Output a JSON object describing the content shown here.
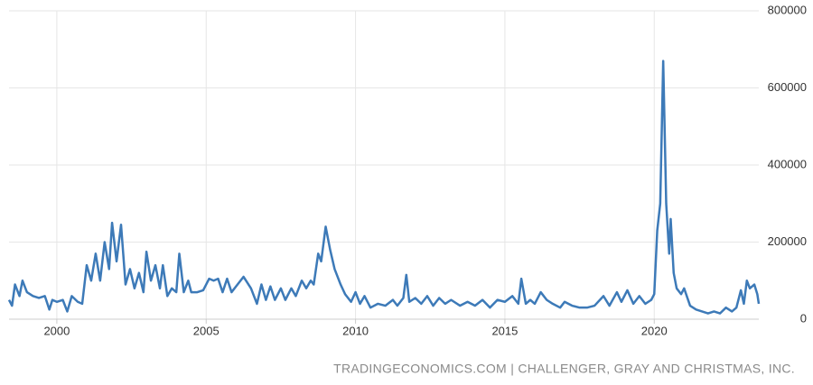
{
  "chart_data": {
    "type": "line",
    "source": "TRADINGECONOMICS.COM | CHALLENGER, GRAY AND CHRISTMAS, INC.",
    "x": [
      1998.4,
      1998.5,
      1998.6,
      1998.75,
      1998.85,
      1999.0,
      1999.2,
      1999.4,
      1999.6,
      1999.75,
      1999.85,
      2000.0,
      2000.2,
      2000.35,
      2000.5,
      2000.7,
      2000.85,
      2001.0,
      2001.15,
      2001.3,
      2001.45,
      2001.6,
      2001.75,
      2001.85,
      2002.0,
      2002.15,
      2002.3,
      2002.45,
      2002.6,
      2002.75,
      2002.9,
      2003.0,
      2003.15,
      2003.3,
      2003.45,
      2003.55,
      2003.7,
      2003.85,
      2004.0,
      2004.1,
      2004.25,
      2004.4,
      2004.5,
      2004.7,
      2004.9,
      2005.1,
      2005.25,
      2005.4,
      2005.55,
      2005.7,
      2005.85,
      2006.0,
      2006.25,
      2006.5,
      2006.7,
      2006.85,
      2007.0,
      2007.15,
      2007.3,
      2007.5,
      2007.65,
      2007.85,
      2008.0,
      2008.2,
      2008.35,
      2008.5,
      2008.6,
      2008.75,
      2008.85,
      2009.0,
      2009.15,
      2009.3,
      2009.5,
      2009.65,
      2009.85,
      2010.0,
      2010.15,
      2010.3,
      2010.5,
      2010.75,
      2011.0,
      2011.25,
      2011.4,
      2011.6,
      2011.7,
      2011.8,
      2012.0,
      2012.2,
      2012.4,
      2012.6,
      2012.8,
      2013.0,
      2013.2,
      2013.5,
      2013.75,
      2014.0,
      2014.25,
      2014.5,
      2014.75,
      2015.0,
      2015.25,
      2015.45,
      2015.55,
      2015.7,
      2015.85,
      2016.0,
      2016.2,
      2016.4,
      2016.6,
      2016.85,
      2017.0,
      2017.25,
      2017.5,
      2017.75,
      2018.0,
      2018.3,
      2018.5,
      2018.75,
      2018.9,
      2019.1,
      2019.3,
      2019.5,
      2019.7,
      2019.9,
      2020.0,
      2020.1,
      2020.2,
      2020.3,
      2020.4,
      2020.5,
      2020.55,
      2020.65,
      2020.75,
      2020.9,
      2021.0,
      2021.2,
      2021.4,
      2021.6,
      2021.8,
      2022.0,
      2022.2,
      2022.4,
      2022.6,
      2022.75,
      2022.9,
      2023.0,
      2023.1,
      2023.2,
      2023.35,
      2023.45,
      2023.5
    ],
    "values": [
      50000,
      35000,
      90000,
      60000,
      100000,
      70000,
      60000,
      55000,
      60000,
      25000,
      50000,
      45000,
      50000,
      20000,
      60000,
      45000,
      40000,
      140000,
      100000,
      170000,
      100000,
      200000,
      130000,
      250000,
      150000,
      245000,
      90000,
      130000,
      80000,
      120000,
      70000,
      175000,
      100000,
      140000,
      80000,
      140000,
      60000,
      80000,
      70000,
      170000,
      70000,
      100000,
      70000,
      70000,
      75000,
      105000,
      100000,
      105000,
      70000,
      105000,
      70000,
      85000,
      110000,
      80000,
      40000,
      90000,
      50000,
      85000,
      50000,
      80000,
      50000,
      80000,
      60000,
      100000,
      80000,
      100000,
      90000,
      170000,
      150000,
      240000,
      180000,
      130000,
      90000,
      65000,
      45000,
      70000,
      40000,
      60000,
      30000,
      40000,
      35000,
      50000,
      35000,
      55000,
      115000,
      45000,
      55000,
      40000,
      60000,
      35000,
      55000,
      40000,
      50000,
      35000,
      45000,
      35000,
      50000,
      30000,
      50000,
      45000,
      60000,
      40000,
      105000,
      40000,
      50000,
      40000,
      70000,
      50000,
      40000,
      30000,
      45000,
      35000,
      30000,
      30000,
      35000,
      60000,
      35000,
      70000,
      45000,
      75000,
      40000,
      60000,
      40000,
      50000,
      65000,
      230000,
      300000,
      670000,
      300000,
      170000,
      260000,
      120000,
      80000,
      65000,
      80000,
      35000,
      25000,
      20000,
      15000,
      20000,
      15000,
      30000,
      20000,
      30000,
      75000,
      40000,
      100000,
      80000,
      90000,
      65000,
      40000
    ],
    "color": "#3d7ab8",
    "xlim": [
      1998.4,
      2023.5
    ],
    "xticks": [
      2000,
      2005,
      2010,
      2015,
      2020
    ],
    "ylim": [
      0,
      800000
    ],
    "yticks": [
      0,
      200000,
      400000,
      600000,
      800000
    ],
    "grid": true
  }
}
